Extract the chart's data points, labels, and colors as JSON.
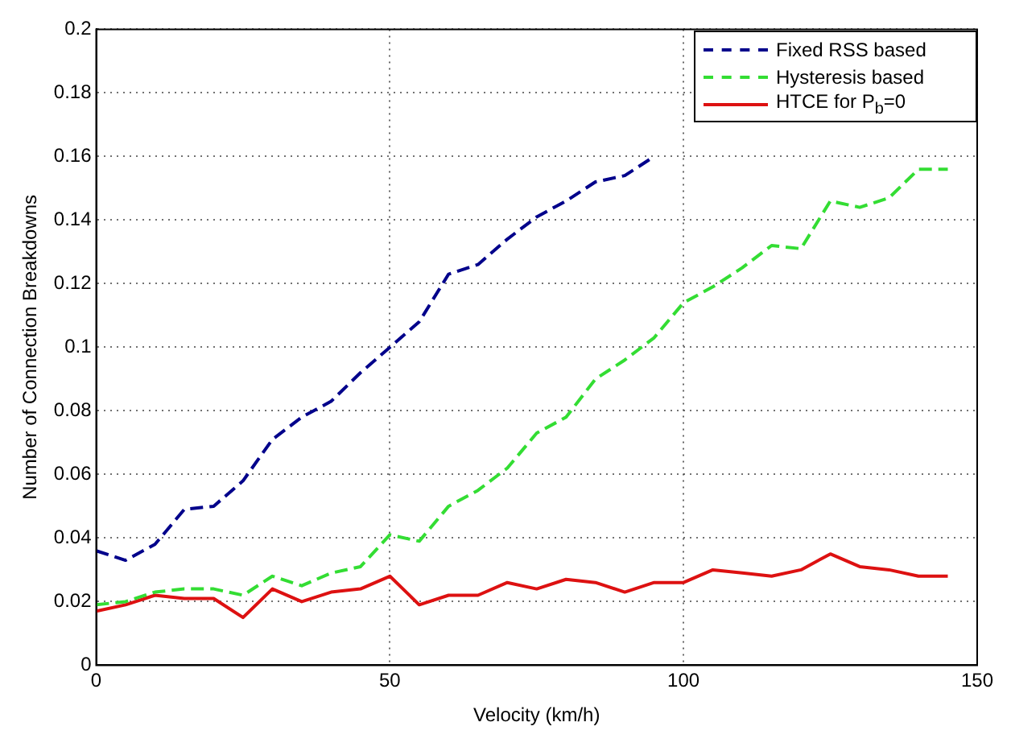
{
  "chart_data": {
    "type": "line",
    "xlabel": "Velocity (km/h)",
    "ylabel": "Number of Connection Breakdowns",
    "x": [
      0,
      5,
      10,
      15,
      20,
      25,
      30,
      35,
      40,
      45,
      50,
      55,
      60,
      65,
      70,
      75,
      80,
      85,
      90,
      95,
      100,
      105,
      110,
      115,
      120,
      125,
      130,
      135,
      140,
      145
    ],
    "xlim": [
      0,
      150
    ],
    "xticks": [
      0,
      50,
      100,
      150
    ],
    "ylim": [
      0,
      0.2
    ],
    "yticks": [
      0,
      0.02,
      0.04,
      0.06,
      0.08,
      0.1,
      0.12,
      0.14,
      0.16,
      0.18,
      0.2
    ],
    "grid": true,
    "legend": "top right",
    "marker": "none",
    "series": [
      {
        "name": "Fixed RSS based",
        "color": "#00008b",
        "line_style": "dashed",
        "values": [
          0.036,
          0.033,
          0.038,
          0.049,
          0.05,
          0.058,
          0.071,
          0.078,
          0.083,
          0.092,
          0.1,
          0.108,
          0.123,
          0.126,
          0.134,
          0.141,
          0.146,
          0.152,
          0.154,
          0.16,
          null,
          null,
          null,
          null,
          null,
          null,
          null,
          null,
          null,
          null
        ]
      },
      {
        "name": "Hysteresis based",
        "color": "#33dd33",
        "line_style": "dashed",
        "values": [
          0.019,
          0.02,
          0.023,
          0.024,
          0.024,
          0.022,
          0.028,
          0.025,
          0.029,
          0.031,
          0.041,
          0.039,
          0.05,
          0.055,
          0.062,
          0.073,
          0.078,
          0.09,
          0.096,
          0.103,
          0.114,
          0.119,
          0.125,
          0.132,
          0.131,
          0.146,
          0.144,
          0.147,
          0.156,
          0.156
        ]
      },
      {
        "name": "HTCE for P$_{b}$=0",
        "color": "#dd1111",
        "line_style": "solid",
        "values": [
          0.017,
          0.019,
          0.022,
          0.021,
          0.021,
          0.015,
          0.024,
          0.02,
          0.023,
          0.024,
          0.028,
          0.019,
          0.022,
          0.022,
          0.026,
          0.024,
          0.027,
          0.026,
          0.023,
          0.026,
          0.026,
          0.03,
          0.029,
          0.028,
          0.03,
          0.035,
          0.031,
          0.03,
          0.028,
          0.028
        ]
      }
    ]
  }
}
